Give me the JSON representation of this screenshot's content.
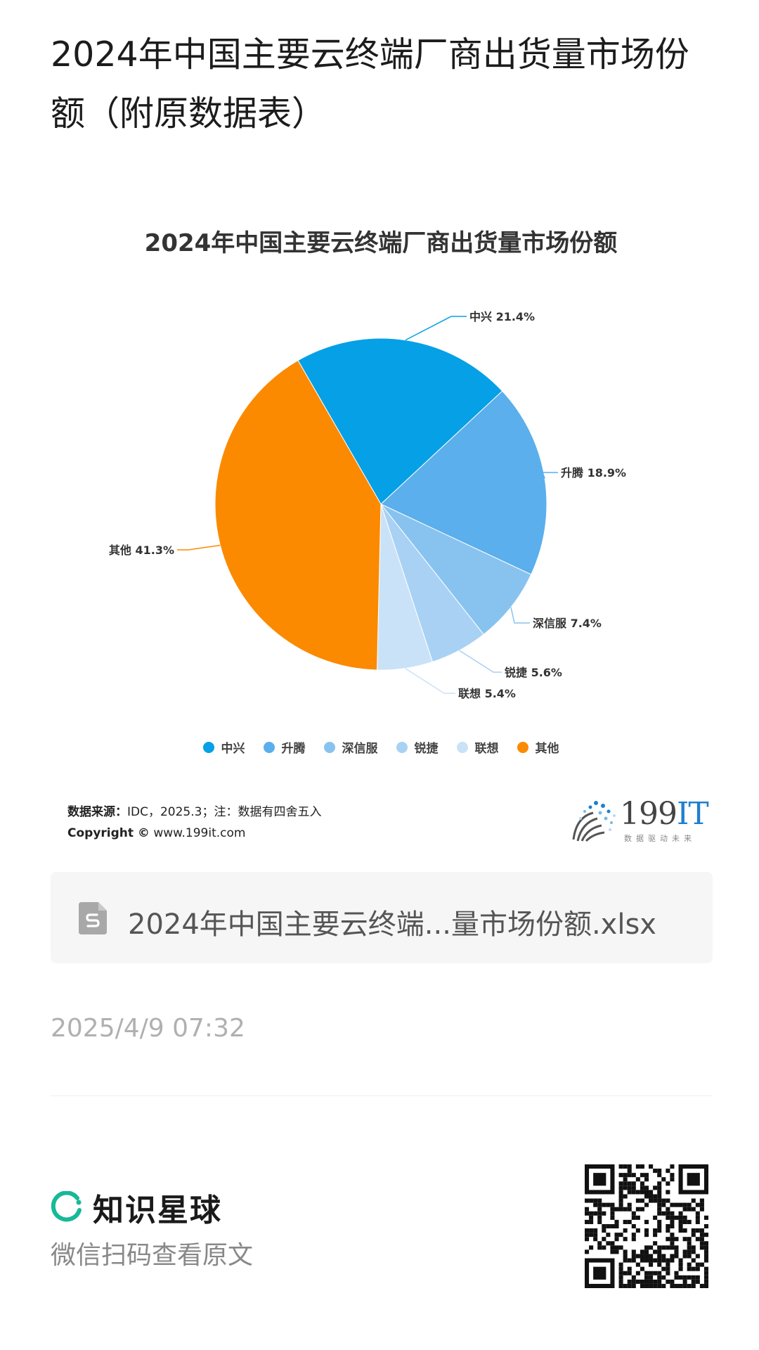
{
  "post": {
    "title": "2024年中国主要云终端厂商出货量市场份额（附原数据表）"
  },
  "chart_data": {
    "type": "pie",
    "title": "2024年中国主要云终端厂商出货量市场份额",
    "categories": [
      "中兴",
      "升腾",
      "深信服",
      "锐捷",
      "联想",
      "其他"
    ],
    "values": [
      21.4,
      18.9,
      7.4,
      5.6,
      5.4,
      41.3
    ],
    "labels": [
      "中兴 21.4%",
      "升腾 18.9%",
      "深信服 7.4%",
      "锐捷 5.6%",
      "联想 5.4%",
      "其他 41.3%"
    ],
    "colors": [
      "#06a0e6",
      "#5aafec",
      "#88c3f0",
      "#a9d1f4",
      "#c9e2f8",
      "#fb8a00"
    ],
    "legend": "bottom"
  },
  "source": {
    "label": "数据来源：",
    "text": "IDC，2025.3；注：数据有四舍五入",
    "copyright_label": "Copyright ©",
    "copyright_text": "www.199it.com"
  },
  "brand": {
    "name_main": "199",
    "name_accent": "IT",
    "slogan": "数据驱动未来"
  },
  "attachment": {
    "icon": "spreadsheet-file-icon",
    "name": "2024年中国主要云终端...量市场份额.xlsx"
  },
  "meta": {
    "timestamp": "2025/4/9 07:32"
  },
  "footer": {
    "platform": "知识星球",
    "scan_hint": "微信扫码查看原文"
  }
}
